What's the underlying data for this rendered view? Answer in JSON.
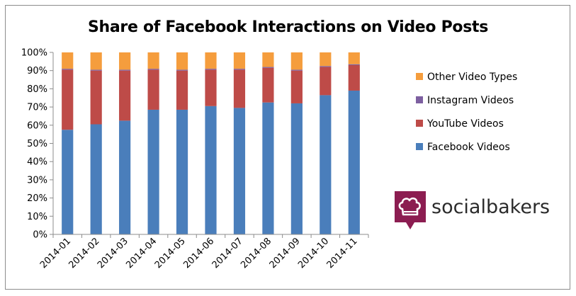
{
  "chart_data": {
    "type": "bar",
    "stacked": true,
    "title": "Share of Facebook Interactions on Video Posts",
    "categories": [
      "2014-01",
      "2014-02",
      "2014-03",
      "2014-04",
      "2014-05",
      "2014-06",
      "2014-07",
      "2014-08",
      "2014-09",
      "2014-10",
      "2014-11"
    ],
    "y_ticks": [
      "0%",
      "10%",
      "20%",
      "30%",
      "40%",
      "50%",
      "60%",
      "70%",
      "80%",
      "90%",
      "100%"
    ],
    "ylim": [
      0,
      100
    ],
    "grid": false,
    "legend_position": "right",
    "series": [
      {
        "name": "Facebook Videos",
        "color": "#4a7ebb",
        "values": [
          57.5,
          60.5,
          62.5,
          68.5,
          68.5,
          70.5,
          69.5,
          72.5,
          72,
          76.5,
          79
        ]
      },
      {
        "name": "YouTube Videos",
        "color": "#be4b48",
        "values": [
          33,
          29.5,
          27.5,
          22,
          21.5,
          20,
          21,
          19,
          18,
          15.5,
          14
        ]
      },
      {
        "name": "Instagram Videos",
        "color": "#7d5fa0",
        "values": [
          0.5,
          0.5,
          0.5,
          0.5,
          0.5,
          0.5,
          0.5,
          0.5,
          0.5,
          0.5,
          0.5
        ]
      },
      {
        "name": "Other Video Types",
        "color": "#f59d3d",
        "values": [
          9,
          9.5,
          9.5,
          9,
          9.5,
          9,
          9,
          8,
          9.5,
          7.5,
          6.5
        ]
      }
    ],
    "legend_order": [
      "Other Video Types",
      "Instagram Videos",
      "YouTube Videos",
      "Facebook Videos"
    ]
  },
  "brand": {
    "name": "socialbakers",
    "logo_color": "#8c1d51",
    "icon": "chef-hat-icon"
  }
}
